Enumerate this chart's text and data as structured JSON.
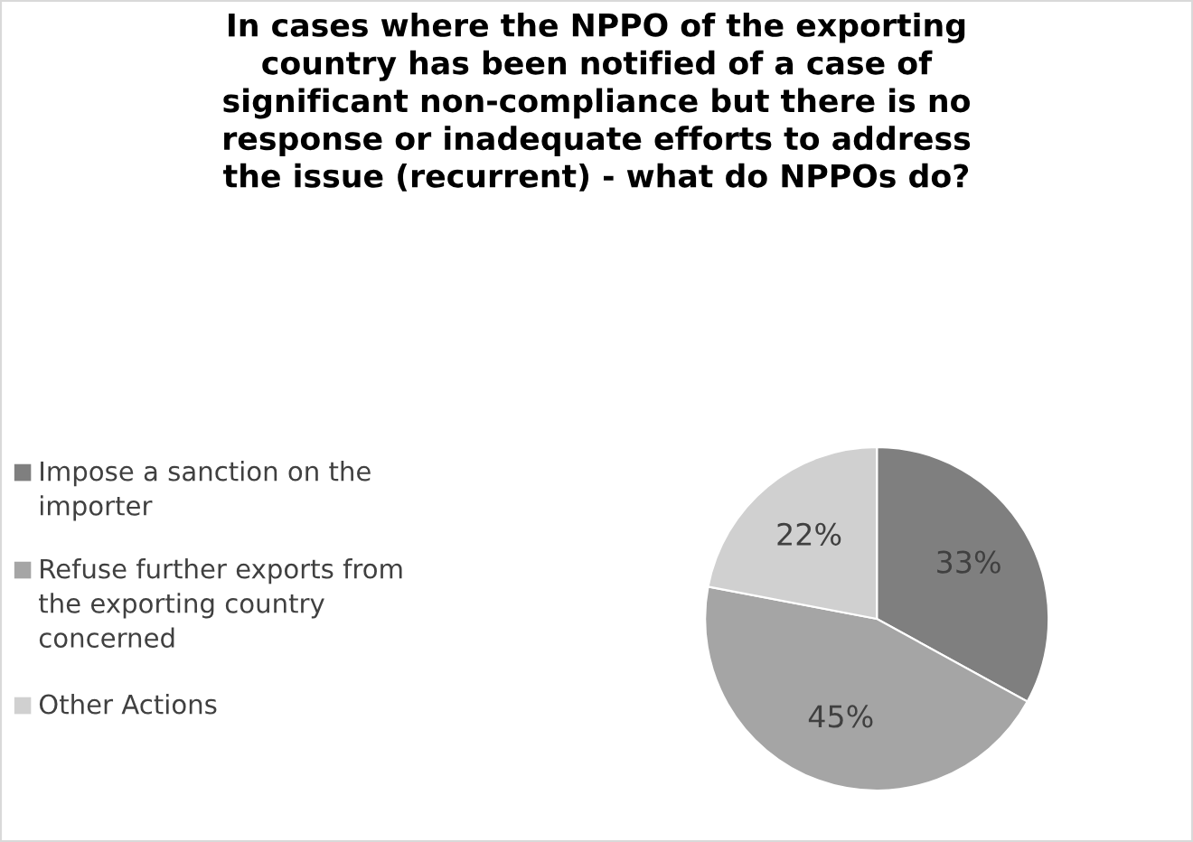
{
  "chart_data": {
    "type": "pie",
    "title": "In cases where the NPPO of the exporting\ncountry has been notified of a case of\nsignificant non-compliance but there is no\nresponse or inadequate efforts to address\nthe issue (recurrent) - what do NPPOs do?",
    "categories": [
      "Impose a sanction on the\nimporter",
      "Refuse further exports from\nthe exporting country\nconcerned",
      "Other Actions"
    ],
    "values": [
      33,
      45,
      22
    ],
    "value_labels": [
      "33%",
      "45%",
      "22%"
    ],
    "colors": [
      "#7f7f7f",
      "#a5a5a5",
      "#d0d0d0"
    ],
    "legend": "left"
  }
}
